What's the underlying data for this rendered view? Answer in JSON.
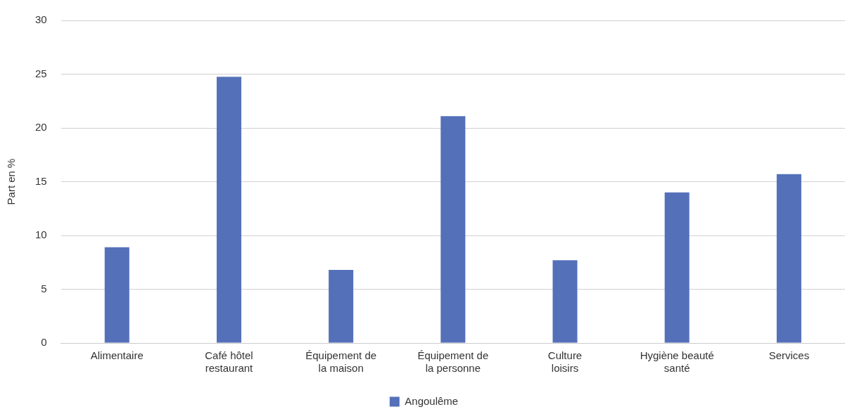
{
  "chart_data": {
    "type": "bar",
    "ylabel": "Part en %",
    "categories": [
      "Alimentaire",
      "Café hôtel restaurant",
      "Équipement de la maison",
      "Équipement de la personne",
      "Culture loisirs",
      "Hygiène beauté santé",
      "Services"
    ],
    "series": [
      {
        "name": "Angoulême",
        "color": "#5470b8",
        "values": [
          8.9,
          24.75,
          6.8,
          21.1,
          7.7,
          14.0,
          15.7
        ]
      }
    ],
    "ylim": [
      0,
      30
    ],
    "yticks": [
      0,
      5,
      10,
      15,
      20,
      25,
      30
    ],
    "grid": "y",
    "legend": "bottom"
  }
}
